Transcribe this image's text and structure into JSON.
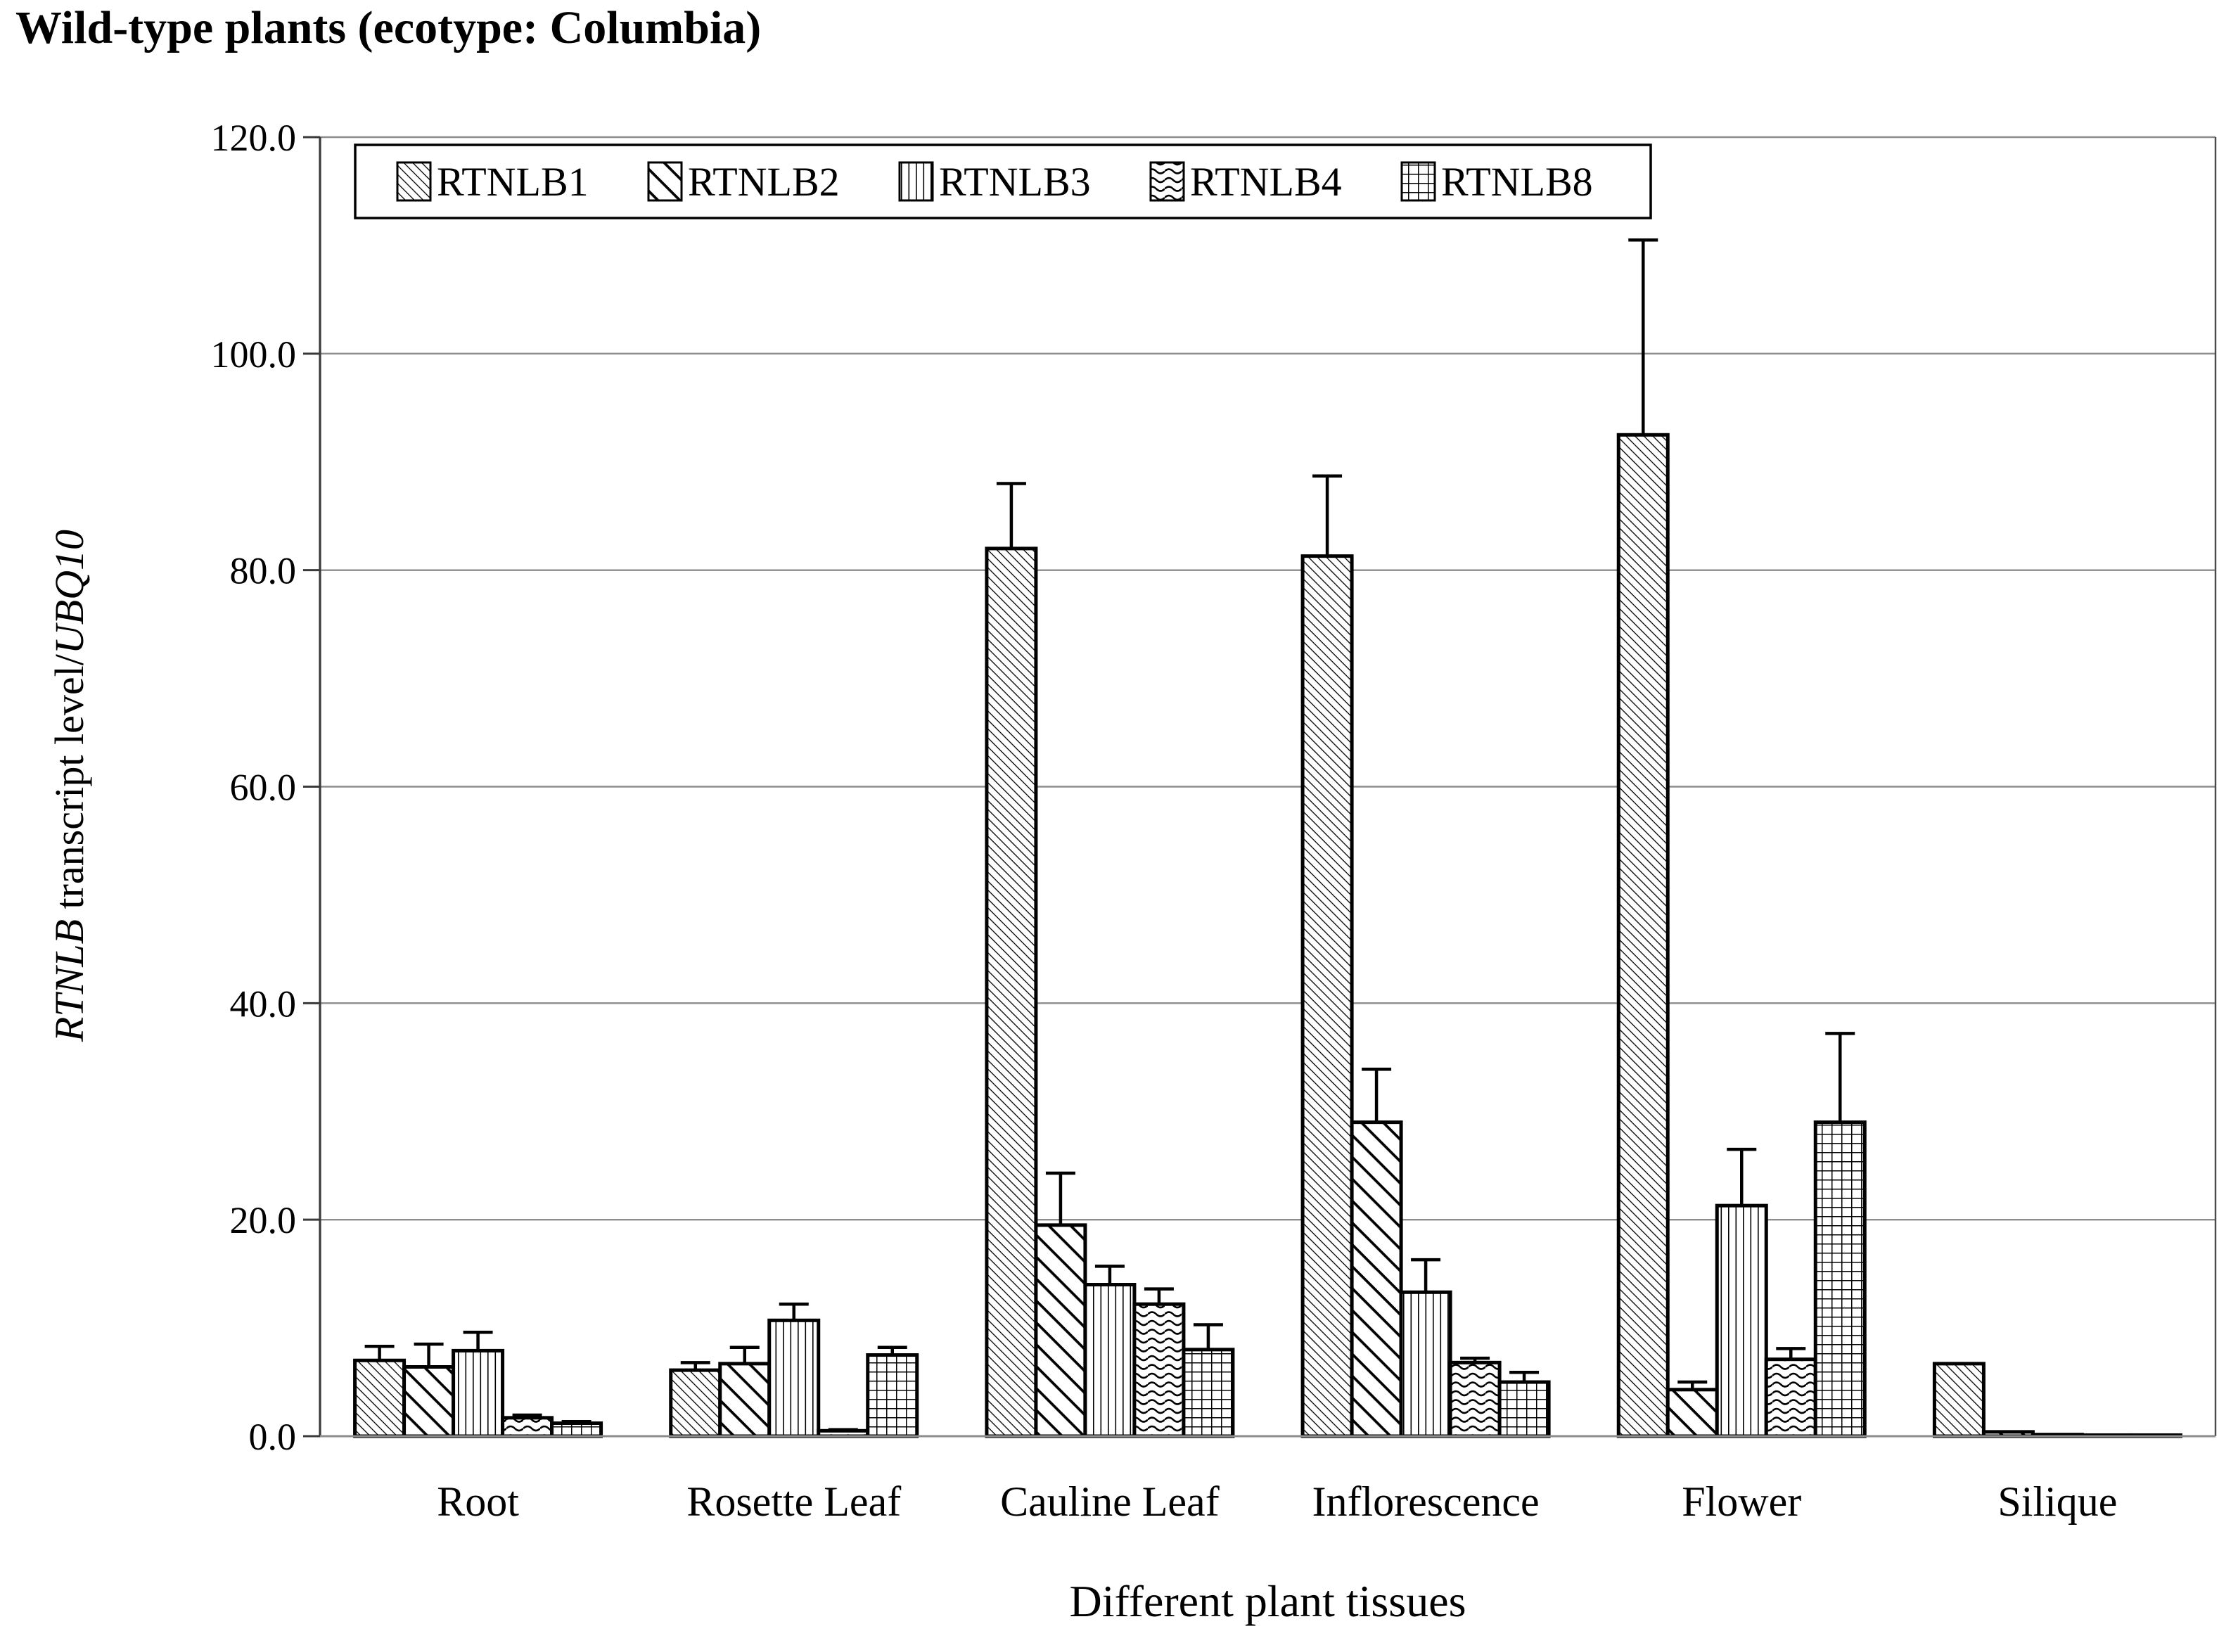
{
  "title": "Wild-type plants (ecotype: Columbia)",
  "chart_data": {
    "type": "bar",
    "title": "Wild-type plants (ecotype: Columbia)",
    "xlabel": "Different plant tissues",
    "ylabel": "RTNLB transcript level/UBQ10",
    "ylabel_parts": [
      {
        "text": "RTNLB",
        "italic": true
      },
      {
        "text": " transcript level/",
        "italic": false
      },
      {
        "text": "UBQ10",
        "italic": true
      }
    ],
    "categories": [
      "Root",
      "Rosette Leaf",
      "Cauline Leaf",
      "Inflorescence",
      "Flower",
      "Silique"
    ],
    "series": [
      {
        "name": "RTNLB1",
        "pattern": "diag-thin",
        "values": [
          7.0,
          6.1,
          82.0,
          81.3,
          92.5,
          6.7
        ],
        "errors": [
          1.3,
          0.7,
          6.0,
          7.4,
          18.0,
          0
        ]
      },
      {
        "name": "RTNLB2",
        "pattern": "diag-thick",
        "values": [
          6.4,
          6.7,
          19.5,
          29.0,
          4.3,
          0.4
        ],
        "errors": [
          2.1,
          1.5,
          4.8,
          4.9,
          0.7,
          0
        ]
      },
      {
        "name": "RTNLB3",
        "pattern": "vertical",
        "values": [
          7.9,
          10.7,
          14.0,
          13.3,
          21.3,
          0.15
        ],
        "errors": [
          1.7,
          1.5,
          1.7,
          3.0,
          5.2,
          0
        ]
      },
      {
        "name": "RTNLB4",
        "pattern": "wave",
        "values": [
          1.7,
          0.5,
          12.2,
          6.8,
          7.1,
          0.1
        ],
        "errors": [
          0.25,
          0.1,
          1.4,
          0.4,
          1.0,
          0
        ]
      },
      {
        "name": "RTNLB8",
        "pattern": "grid",
        "values": [
          1.2,
          7.5,
          8.0,
          5.0,
          29.0,
          0.1
        ],
        "errors": [
          0.15,
          0.7,
          2.3,
          0.9,
          8.2,
          0
        ]
      }
    ],
    "ylim": [
      0,
      120
    ],
    "ytick_step": 20,
    "y_tick_labels": [
      "0.0",
      "20.0",
      "40.0",
      "60.0",
      "80.0",
      "100.0",
      "120.0"
    ],
    "grid": true,
    "legend_position": "top-left-inside",
    "colors": {
      "bar_fill": "#ffffff",
      "bar_stroke": "#000000",
      "gridline": "#8c8c8c",
      "axis": "#3a3a3a",
      "error_bar": "#000000",
      "legend_border": "#000000"
    }
  }
}
